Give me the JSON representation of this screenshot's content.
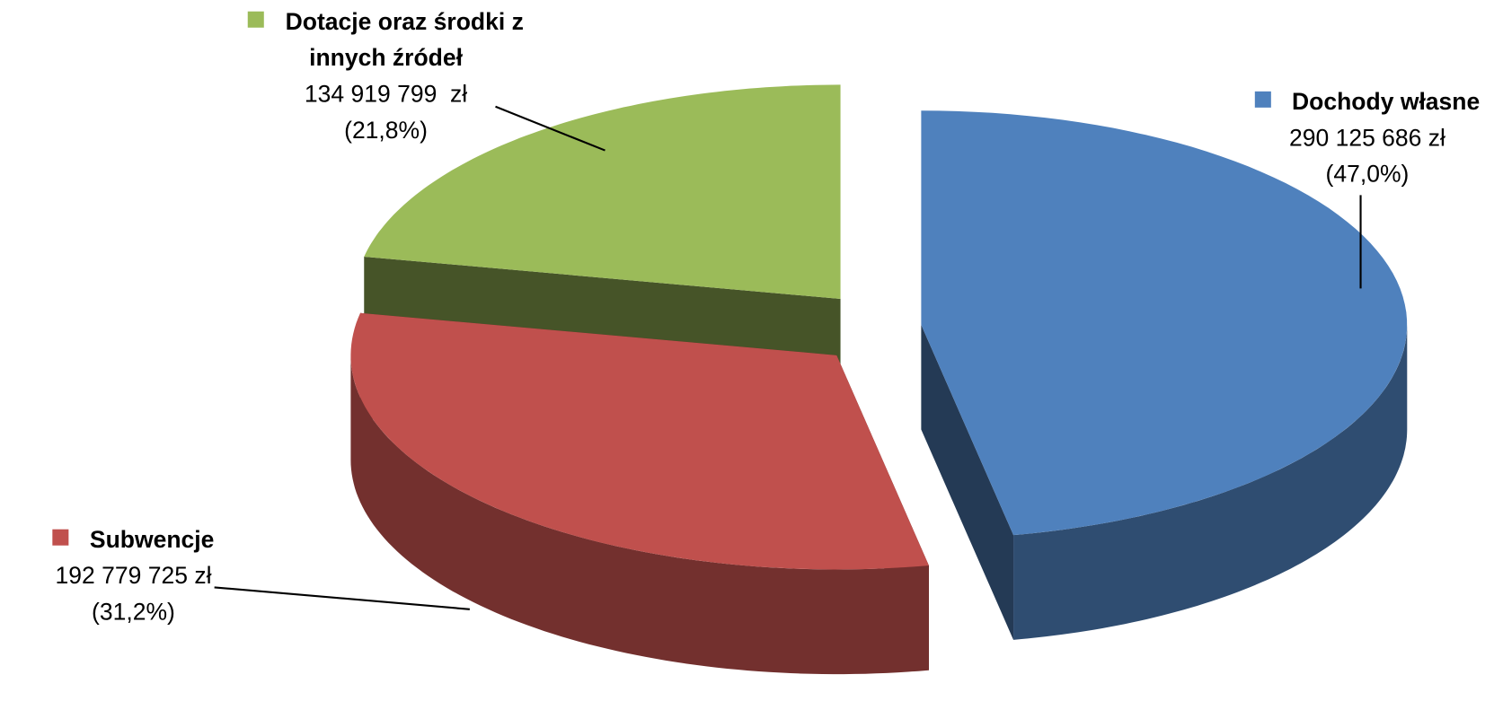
{
  "chart_data": {
    "type": "pie",
    "categories": [
      "Dochody własne",
      "Subwencje",
      "Dotacje oraz środki z innych źródeł"
    ],
    "values": [
      290125686,
      192779725,
      134919799
    ],
    "value_labels": [
      "290 125 686 zł",
      "192 779 725 zł",
      "134 919 799  zł"
    ],
    "percent_labels": [
      "(47,0%)",
      "(31,2%)",
      "(21,8%)"
    ],
    "colors": [
      "#4f81bd",
      "#c0504d",
      "#9bbb59"
    ]
  }
}
